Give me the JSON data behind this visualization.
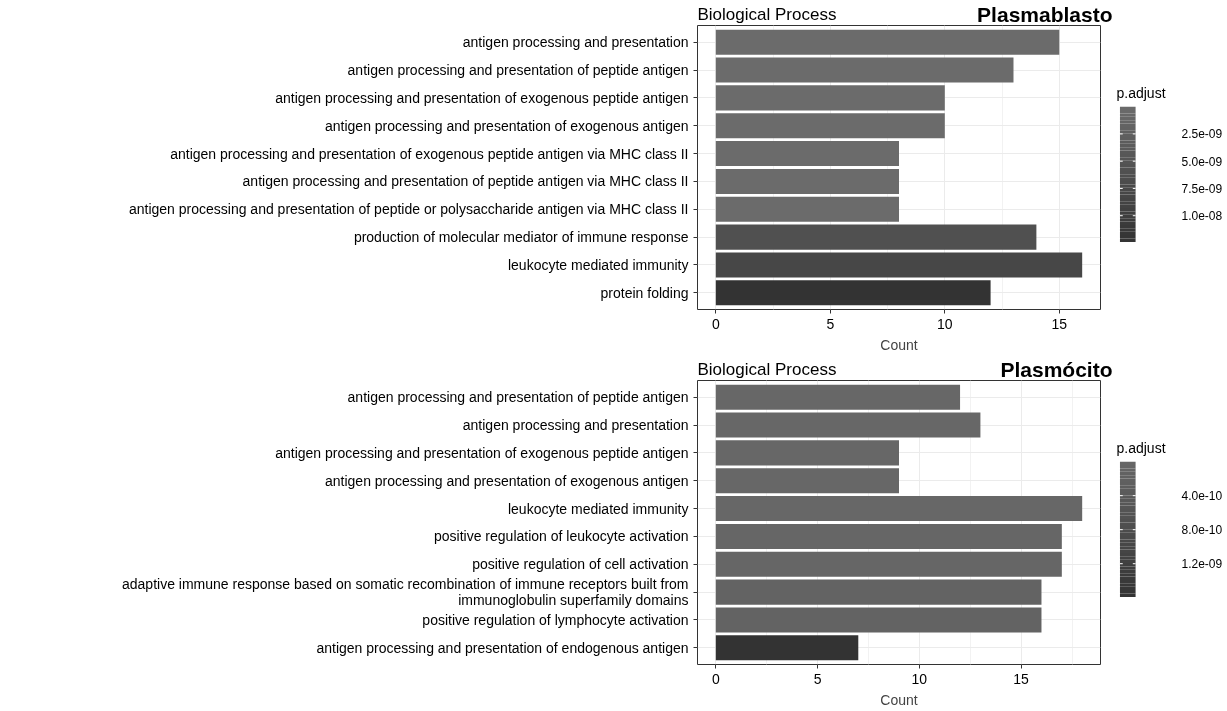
{
  "chart_data": [
    {
      "type": "bar",
      "orientation": "horizontal",
      "title": "Biological Process",
      "subtitle": "Plasmablasto",
      "xlabel": "Count",
      "clabel": "p.adjust",
      "categories": [
        "antigen processing and presentation",
        "antigen processing and presentation of peptide antigen",
        "antigen processing and presentation of exogenous peptide antigen",
        "antigen processing and presentation of exogenous antigen",
        "antigen processing and presentation of exogenous peptide antigen via MHC class II",
        "antigen processing and presentation of peptide antigen via MHC class II",
        "antigen processing and presentation of peptide or polysaccharide antigen via MHC class II",
        "production of molecular mediator of immune response",
        "leukocyte mediated immunity",
        "protein folding"
      ],
      "values": [
        15,
        13,
        10,
        10,
        8,
        8,
        8,
        14,
        16,
        12
      ],
      "colors": [
        "#6b6b6b",
        "#6b6b6b",
        "#6b6b6b",
        "#6b6b6b",
        "#6b6b6b",
        "#6b6b6b",
        "#6b6b6b",
        "#505050",
        "#474747",
        "#333333"
      ],
      "xlim": [
        -0.8,
        16.8
      ],
      "xticks": [
        0,
        5,
        10,
        15
      ],
      "clim": [
        0,
        1.24e-08
      ],
      "cticks": [
        {
          "value": 2.5e-09,
          "label": "2.5e-09"
        },
        {
          "value": 5e-09,
          "label": "5.0e-09"
        },
        {
          "value": 7.5e-09,
          "label": "7.5e-09"
        },
        {
          "value": 1e-08,
          "label": "1.0e-08"
        }
      ],
      "grid": true
    },
    {
      "type": "bar",
      "orientation": "horizontal",
      "title": "Biological Process",
      "subtitle": "Plasmócito",
      "xlabel": "Count",
      "clabel": "p.adjust",
      "categories": [
        "antigen processing and presentation of peptide antigen",
        "antigen processing and presentation",
        "antigen processing and presentation of exogenous peptide antigen",
        "antigen processing and presentation of exogenous antigen",
        "leukocyte mediated immunity",
        "positive regulation of leukocyte activation",
        "positive regulation of cell activation",
        "adaptive immune response based on somatic recombination of immune receptors built from\nimmunoglobulin superfamily domains",
        "positive regulation of lymphocyte activation",
        "antigen processing and presentation of endogenous antigen"
      ],
      "values": [
        12,
        13,
        9,
        9,
        18,
        17,
        17,
        16,
        16,
        7
      ],
      "colors": [
        "#676767",
        "#676767",
        "#676767",
        "#676767",
        "#676767",
        "#666666",
        "#666666",
        "#636363",
        "#636363",
        "#333333"
      ],
      "xlim": [
        -0.9,
        18.9
      ],
      "xticks": [
        0,
        5,
        10,
        15
      ],
      "clim": [
        0,
        1.59e-09
      ],
      "cticks": [
        {
          "value": 4e-10,
          "label": "4.0e-10"
        },
        {
          "value": 8e-10,
          "label": "8.0e-10"
        },
        {
          "value": 1.2e-09,
          "label": "1.2e-09"
        }
      ],
      "grid": true
    }
  ]
}
